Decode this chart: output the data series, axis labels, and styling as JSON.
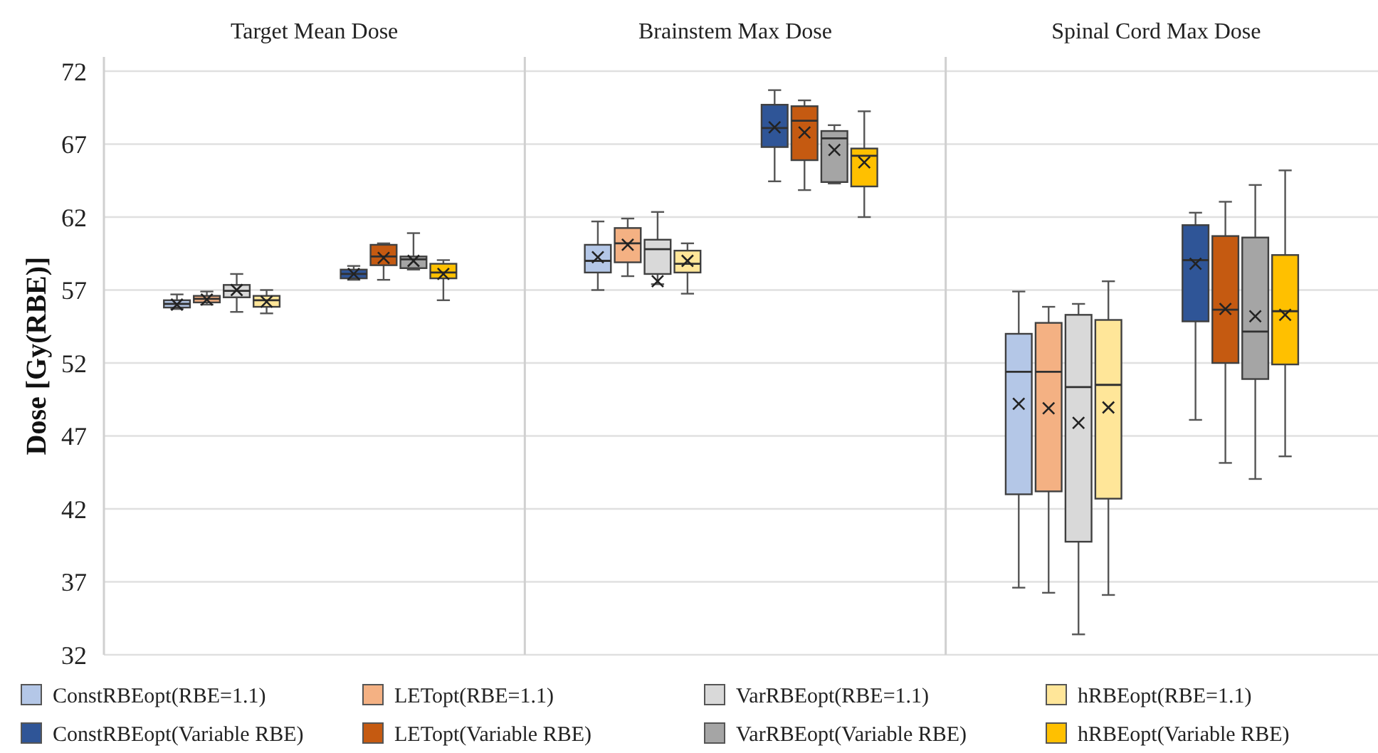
{
  "chart_data": {
    "type": "box",
    "categories": [
      "Target Mean Dose",
      "Brainstem Max Dose",
      "Spinal Cord Max Dose"
    ],
    "ylabel": "Dose [Gy(RBE)]",
    "ylim": [
      32,
      72
    ],
    "yticks": [
      32,
      37,
      42,
      47,
      52,
      57,
      62,
      67,
      72
    ],
    "grid": "y",
    "legend": "bottom",
    "series": [
      {
        "name": "ConstRBEopt(RBE=1.1)",
        "color": "#b4c7e7",
        "boxes": [
          {
            "low": 55.7,
            "q1": 55.8,
            "median": 56.05,
            "q3": 56.3,
            "high": 56.7,
            "mean": 56.0
          },
          {
            "low": 57.0,
            "q1": 58.2,
            "median": 59.0,
            "q3": 60.1,
            "high": 61.7,
            "mean": 59.25
          },
          {
            "low": 36.6,
            "q1": 43.0,
            "median": 51.4,
            "q3": 54.0,
            "high": 56.9,
            "mean": 49.2
          }
        ]
      },
      {
        "name": "LETopt(RBE=1.1)",
        "color": "#f4b183",
        "boxes": [
          {
            "low": 56.0,
            "q1": 56.15,
            "median": 56.4,
            "q3": 56.6,
            "high": 56.9,
            "mean": 56.35
          },
          {
            "low": 57.95,
            "q1": 58.9,
            "median": 60.2,
            "q3": 61.25,
            "high": 61.9,
            "mean": 60.1
          },
          {
            "low": 36.25,
            "q1": 43.2,
            "median": 51.4,
            "q3": 54.75,
            "high": 55.85,
            "mean": 48.9
          }
        ]
      },
      {
        "name": "VarRBEopt(RBE=1.1)",
        "color": "#d9d9d9",
        "boxes": [
          {
            "low": 55.5,
            "q1": 56.5,
            "median": 56.95,
            "q3": 57.35,
            "high": 58.1,
            "mean": 57.0
          },
          {
            "low": 57.4,
            "q1": 58.1,
            "median": 59.8,
            "q3": 60.45,
            "high": 62.35,
            "mean": 57.6
          },
          {
            "low": 33.4,
            "q1": 39.75,
            "median": 50.35,
            "q3": 55.3,
            "high": 56.05,
            "mean": 47.9
          }
        ]
      },
      {
        "name": "hRBEopt(RBE=1.1)",
        "color": "#ffe699",
        "boxes": [
          {
            "low": 55.4,
            "q1": 55.85,
            "median": 56.3,
            "q3": 56.6,
            "high": 57.0,
            "mean": 56.2
          },
          {
            "low": 56.75,
            "q1": 58.2,
            "median": 58.8,
            "q3": 59.7,
            "high": 60.2,
            "mean": 59.0
          },
          {
            "low": 36.1,
            "q1": 42.7,
            "median": 50.5,
            "q3": 54.95,
            "high": 57.6,
            "mean": 48.95
          }
        ]
      },
      {
        "name": "ConstRBEopt(Variable RBE)",
        "color": "#2f5597",
        "boxes": [
          {
            "low": 57.7,
            "q1": 57.8,
            "median": 58.1,
            "q3": 58.4,
            "high": 58.65,
            "mean": 58.1
          },
          {
            "low": 64.45,
            "q1": 66.8,
            "median": 68.1,
            "q3": 69.7,
            "high": 70.7,
            "mean": 68.15
          },
          {
            "low": 48.1,
            "q1": 54.85,
            "median": 59.05,
            "q3": 61.45,
            "high": 62.3,
            "mean": 58.8
          }
        ]
      },
      {
        "name": "LETopt(Variable RBE)",
        "color": "#c55a11",
        "boxes": [
          {
            "low": 57.7,
            "q1": 58.7,
            "median": 59.3,
            "q3": 60.1,
            "high": 60.2,
            "mean": 59.2
          },
          {
            "low": 63.85,
            "q1": 65.9,
            "median": 68.6,
            "q3": 69.6,
            "high": 70.0,
            "mean": 67.8
          },
          {
            "low": 45.15,
            "q1": 52.0,
            "median": 55.65,
            "q3": 60.7,
            "high": 63.05,
            "mean": 55.7
          }
        ]
      },
      {
        "name": "VarRBEopt(Variable RBE)",
        "color": "#a5a5a5",
        "boxes": [
          {
            "low": 58.4,
            "q1": 58.5,
            "median": 59.1,
            "q3": 59.3,
            "high": 60.9,
            "mean": 59.0
          },
          {
            "low": 64.3,
            "q1": 64.4,
            "median": 67.4,
            "q3": 67.9,
            "high": 68.3,
            "mean": 66.6
          },
          {
            "low": 44.05,
            "q1": 50.9,
            "median": 54.15,
            "q3": 60.6,
            "high": 64.2,
            "mean": 55.2
          }
        ]
      },
      {
        "name": "hRBEopt(Variable RBE)",
        "color": "#ffc000",
        "boxes": [
          {
            "low": 56.3,
            "q1": 57.8,
            "median": 58.2,
            "q3": 58.8,
            "high": 59.05,
            "mean": 58.1
          },
          {
            "low": 62.0,
            "q1": 64.1,
            "median": 66.2,
            "q3": 66.7,
            "high": 69.25,
            "mean": 65.75
          },
          {
            "low": 45.6,
            "q1": 51.9,
            "median": 55.55,
            "q3": 59.4,
            "high": 65.2,
            "mean": 55.3
          }
        ]
      }
    ]
  }
}
